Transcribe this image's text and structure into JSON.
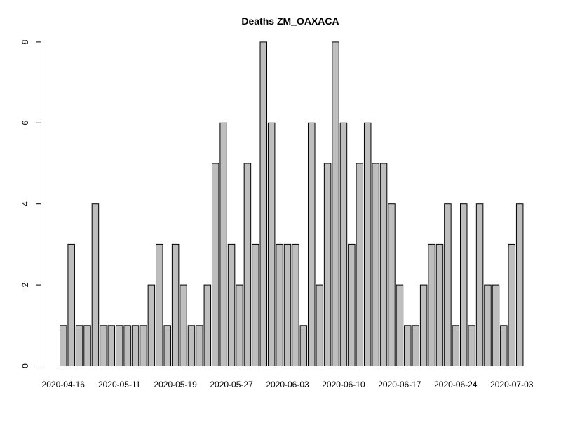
{
  "chart_data": {
    "type": "bar",
    "title": "Deaths ZM_OAXACA",
    "xlabel": "",
    "ylabel": "",
    "ylim": [
      0,
      8
    ],
    "y_ticks": [
      0,
      2,
      4,
      6,
      8
    ],
    "x_tick_labels": [
      "2020-04-16",
      "2020-05-11",
      "2020-05-19",
      "2020-05-27",
      "2020-06-03",
      "2020-06-10",
      "2020-06-17",
      "2020-06-24",
      "2020-07-03"
    ],
    "x_tick_bar_index": [
      0,
      7,
      14,
      21,
      28,
      35,
      42,
      49,
      56
    ],
    "values": [
      1,
      3,
      1,
      1,
      4,
      1,
      1,
      1,
      1,
      1,
      1,
      2,
      3,
      1,
      3,
      2,
      1,
      1,
      2,
      5,
      6,
      3,
      2,
      5,
      3,
      8,
      6,
      3,
      3,
      3,
      1,
      6,
      2,
      5,
      8,
      6,
      3,
      5,
      6,
      5,
      5,
      4,
      2,
      1,
      1,
      2,
      3,
      3,
      4,
      1,
      4,
      1,
      4,
      2,
      2,
      1,
      3,
      4
    ],
    "bar_color": "#bebebe",
    "border_color": "#000000",
    "grid": false,
    "legend": "none"
  }
}
